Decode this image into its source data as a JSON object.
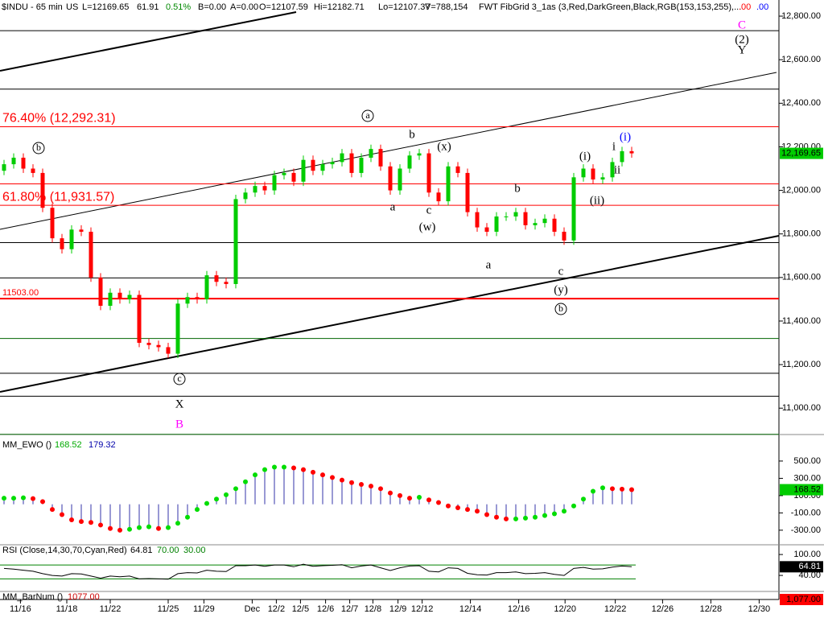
{
  "header": [
    "$INDU - 65 min",
    "US",
    "L=12169.65",
    "61.91",
    "0.51%",
    "B=0.00",
    "A=0.00",
    "O=12107.59",
    "Hi=12182.71",
    "Lo=12107.37",
    "V=788,154",
    "FWT FibGrid 3_1as (3,Red,DarkGreen,Black,RGB(153,153,255),...",
    ".00",
    ".00"
  ],
  "chart_data": [
    {
      "type": "candlestick",
      "up_color": "#00cc00",
      "down_color": "#ff0000",
      "x": [
        0,
        1,
        2,
        3,
        4,
        5,
        6,
        7,
        8,
        9,
        10,
        11,
        12,
        13,
        14,
        15,
        16,
        17,
        18,
        19,
        20,
        21,
        22,
        23,
        24,
        25,
        26,
        27,
        28,
        29,
        30,
        31,
        32,
        33,
        34,
        35,
        36,
        37,
        38,
        39,
        40,
        41,
        42,
        43,
        44,
        45,
        46,
        47,
        48,
        49,
        50,
        51,
        52,
        53,
        54,
        55,
        56,
        57,
        58,
        59,
        60,
        61,
        62,
        63,
        64,
        65
      ],
      "open": [
        12090,
        12120,
        12150,
        12100,
        12080,
        11920,
        11780,
        11730,
        11820,
        11810,
        11600,
        11470,
        11530,
        11500,
        11520,
        11300,
        11290,
        11280,
        11250,
        11480,
        11510,
        11500,
        11610,
        11580,
        11570,
        11960,
        11990,
        12020,
        12000,
        12070,
        12080,
        12040,
        12140,
        12090,
        12120,
        12130,
        12170,
        12080,
        12150,
        12190,
        12110,
        12000,
        12100,
        12160,
        12170,
        11990,
        11950,
        12110,
        12080,
        11900,
        11830,
        11810,
        11880,
        11880,
        11900,
        11840,
        11850,
        11870,
        11810,
        11770,
        12060,
        12100,
        12050,
        12060,
        12130,
        12180
      ],
      "high": [
        12140,
        12170,
        12170,
        12120,
        12100,
        11940,
        11800,
        11840,
        11840,
        11830,
        11620,
        11550,
        11550,
        11540,
        11540,
        11320,
        11310,
        11300,
        11500,
        11530,
        11530,
        11630,
        11630,
        11600,
        11980,
        12010,
        12040,
        12040,
        12090,
        12100,
        12100,
        12160,
        12160,
        12140,
        12150,
        12190,
        12190,
        12170,
        12210,
        12210,
        12130,
        12120,
        12180,
        12190,
        12190,
        12010,
        12130,
        12130,
        12100,
        11920,
        11850,
        11900,
        11900,
        11920,
        11920,
        11870,
        11890,
        11890,
        11830,
        12080,
        12120,
        12120,
        12080,
        12150,
        12200,
        12200
      ],
      "low": [
        12070,
        12100,
        12080,
        12060,
        11900,
        11760,
        11710,
        11710,
        11790,
        11580,
        11450,
        11450,
        11480,
        11480,
        11280,
        11270,
        11260,
        11230,
        11230,
        11460,
        11480,
        11480,
        11560,
        11550,
        11550,
        11940,
        11970,
        11980,
        11980,
        12050,
        12020,
        12020,
        12070,
        12070,
        12100,
        12110,
        12060,
        12060,
        12130,
        12090,
        11980,
        11980,
        12080,
        12140,
        11970,
        11930,
        11930,
        12060,
        11880,
        11810,
        11790,
        11790,
        11860,
        11860,
        11820,
        11820,
        11830,
        11790,
        11750,
        11750,
        12040,
        12030,
        12030,
        12040,
        12110,
        12150
      ],
      "close": [
        12120,
        12150,
        12100,
        12080,
        11920,
        11780,
        11730,
        11820,
        11810,
        11600,
        11470,
        11530,
        11500,
        11520,
        11300,
        11290,
        11280,
        11250,
        11480,
        11510,
        11500,
        11610,
        11580,
        11570,
        11960,
        11990,
        12020,
        12000,
        12070,
        12080,
        12040,
        12140,
        12090,
        12120,
        12130,
        12170,
        12080,
        12150,
        12190,
        12110,
        12000,
        12100,
        12160,
        12170,
        11990,
        11950,
        12110,
        12080,
        11900,
        11830,
        11810,
        11880,
        11880,
        11900,
        11840,
        11850,
        11870,
        11810,
        11770,
        12060,
        12100,
        12050,
        12060,
        12130,
        12180,
        12170
      ],
      "ylim": [
        10890,
        12863
      ],
      "yticks": [
        {
          "value": 11000,
          "label": "11,000.00"
        },
        {
          "value": 11200,
          "label": "11,200.00"
        },
        {
          "value": 11400,
          "label": "11,400.00"
        },
        {
          "value": 11600,
          "label": "11,600.00"
        },
        {
          "value": 11800,
          "label": "11,800.00"
        },
        {
          "value": 12000,
          "label": "12,000.00"
        },
        {
          "value": 12200,
          "label": "12,200.00"
        },
        {
          "value": 12400,
          "label": "12,400.00"
        },
        {
          "value": 12600,
          "label": "12,600.00"
        },
        {
          "value": 12800,
          "label": "12,800.00"
        }
      ],
      "xlim": [
        -0.4167,
        80.25
      ],
      "xticks": [
        {
          "value": 1.7,
          "label": "11/16"
        },
        {
          "value": 6.5,
          "label": "11/18"
        },
        {
          "value": 11,
          "label": "11/22"
        },
        {
          "value": 17,
          "label": "11/25"
        },
        {
          "value": 20.7,
          "label": "11/29"
        },
        {
          "value": 25.7,
          "label": "Dec"
        },
        {
          "value": 28.2,
          "label": "12/2"
        },
        {
          "value": 30.7,
          "label": "12/5"
        },
        {
          "value": 33.3,
          "label": "12/6"
        },
        {
          "value": 35.8,
          "label": "12/7"
        },
        {
          "value": 38.2,
          "label": "12/8"
        },
        {
          "value": 40.8,
          "label": "12/9"
        },
        {
          "value": 43.3,
          "label": "12/12"
        },
        {
          "value": 48.3,
          "label": "12/14"
        },
        {
          "value": 53.3,
          "label": "12/16"
        },
        {
          "value": 58.1,
          "label": "12/20"
        },
        {
          "value": 63.3,
          "label": "12/22"
        },
        {
          "value": 68.2,
          "label": "12/26"
        },
        {
          "value": 73.2,
          "label": "12/28"
        },
        {
          "value": 78.2,
          "label": "12/30"
        }
      ],
      "levels": [
        {
          "value": 12733,
          "color": "#000000"
        },
        {
          "value": 12465,
          "color": "#000000"
        },
        {
          "value": 12292.31,
          "color": "#ff0000",
          "label": "76.40% (12,292.31)"
        },
        {
          "value": 12030,
          "color": "#ff0000"
        },
        {
          "value": 11931.57,
          "color": "#ff0000",
          "label": "61.80% (11,931.57)"
        },
        {
          "value": 11760,
          "color": "#000000"
        },
        {
          "value": 11598,
          "color": "#000000"
        },
        {
          "value": 11503,
          "color": "#ff0000",
          "label": "11503.00"
        },
        {
          "value": 11320,
          "color": "#006400"
        },
        {
          "value": 11160,
          "color": "#000000"
        },
        {
          "value": 11055,
          "color": "#000000"
        },
        {
          "value": 10880,
          "color": "#006400"
        }
      ],
      "annotations": [
        {
          "text": "b"
        },
        {
          "text": "a"
        },
        {
          "text": "b"
        },
        {
          "text": "(x)"
        },
        {
          "text": "a"
        },
        {
          "text": "c"
        },
        {
          "text": "(w)"
        },
        {
          "text": "b"
        },
        {
          "text": "a"
        },
        {
          "text": "c"
        },
        {
          "text": "(y)"
        },
        {
          "text": "b"
        },
        {
          "text": "(i)"
        },
        {
          "text": "(ii)"
        },
        {
          "text": "i"
        },
        {
          "text": "ii"
        },
        {
          "text": "(i)",
          "color": "#0000ff"
        },
        {
          "text": "c"
        },
        {
          "text": "X"
        },
        {
          "text": "B",
          "color": "#ff00ff"
        },
        {
          "text": "C",
          "color": "#ff00ff"
        },
        {
          "text": "(2)"
        },
        {
          "text": "Y"
        }
      ],
      "last_label": "12,169.65"
    },
    {
      "type": "histogram-dots",
      "title": "MM_EWO ()",
      "header_values": [
        "168.52",
        "179.32"
      ],
      "bar_color": "#3333aa",
      "up_color": "#00dd00",
      "down_color": "#ff0000",
      "values": [
        70,
        70,
        75,
        65,
        30,
        -60,
        -120,
        -180,
        -200,
        -210,
        -240,
        -280,
        -300,
        -290,
        -270,
        -260,
        -280,
        -270,
        -220,
        -150,
        -60,
        10,
        60,
        110,
        180,
        260,
        340,
        400,
        430,
        430,
        420,
        400,
        370,
        340,
        310,
        280,
        250,
        230,
        210,
        180,
        130,
        100,
        70,
        80,
        50,
        20,
        -20,
        -40,
        -60,
        -80,
        -120,
        -150,
        -170,
        -170,
        -160,
        -150,
        -130,
        -110,
        -80,
        -20,
        60,
        150,
        190,
        180,
        175,
        168.52
      ],
      "ylim": [
        -450,
        760
      ],
      "yticks": [
        {
          "value": 500,
          "label": "500.00"
        },
        {
          "value": 300,
          "label": "300.00"
        },
        {
          "value": 100,
          "label": "100.00"
        },
        {
          "value": -100,
          "label": "-100.00"
        },
        {
          "value": -300,
          "label": "-300.00"
        }
      ],
      "last_label": "168.52"
    },
    {
      "type": "line",
      "title": "RSI (Close,14,30,70,Cyan,Red)",
      "header_values": [
        "64.81",
        "70.00",
        "30.00"
      ],
      "color": "#000000",
      "values": [
        60,
        58,
        55,
        52,
        45,
        40,
        38,
        45,
        44,
        38,
        32,
        38,
        36,
        38,
        30,
        31,
        30,
        29,
        45,
        48,
        47,
        55,
        52,
        51,
        68,
        68,
        70,
        66,
        70,
        70,
        65,
        72,
        66,
        68,
        69,
        71,
        62,
        67,
        70,
        62,
        54,
        62,
        67,
        68,
        52,
        50,
        62,
        60,
        46,
        42,
        41,
        48,
        48,
        50,
        45,
        46,
        48,
        43,
        40,
        60,
        63,
        58,
        59,
        64,
        67,
        64.81
      ],
      "bands": [
        70,
        30
      ],
      "band_color": "#008000",
      "ylim": [
        -6,
        121
      ],
      "yticks": [
        {
          "value": 100,
          "label": "100.00"
        },
        {
          "value": 40,
          "label": "40.00"
        }
      ],
      "last_label": "64.81"
    },
    {
      "type": "indicator",
      "title": "MM_BarNum ()",
      "header_values": [
        "1077.00"
      ],
      "last_label": "1,077.00"
    }
  ]
}
